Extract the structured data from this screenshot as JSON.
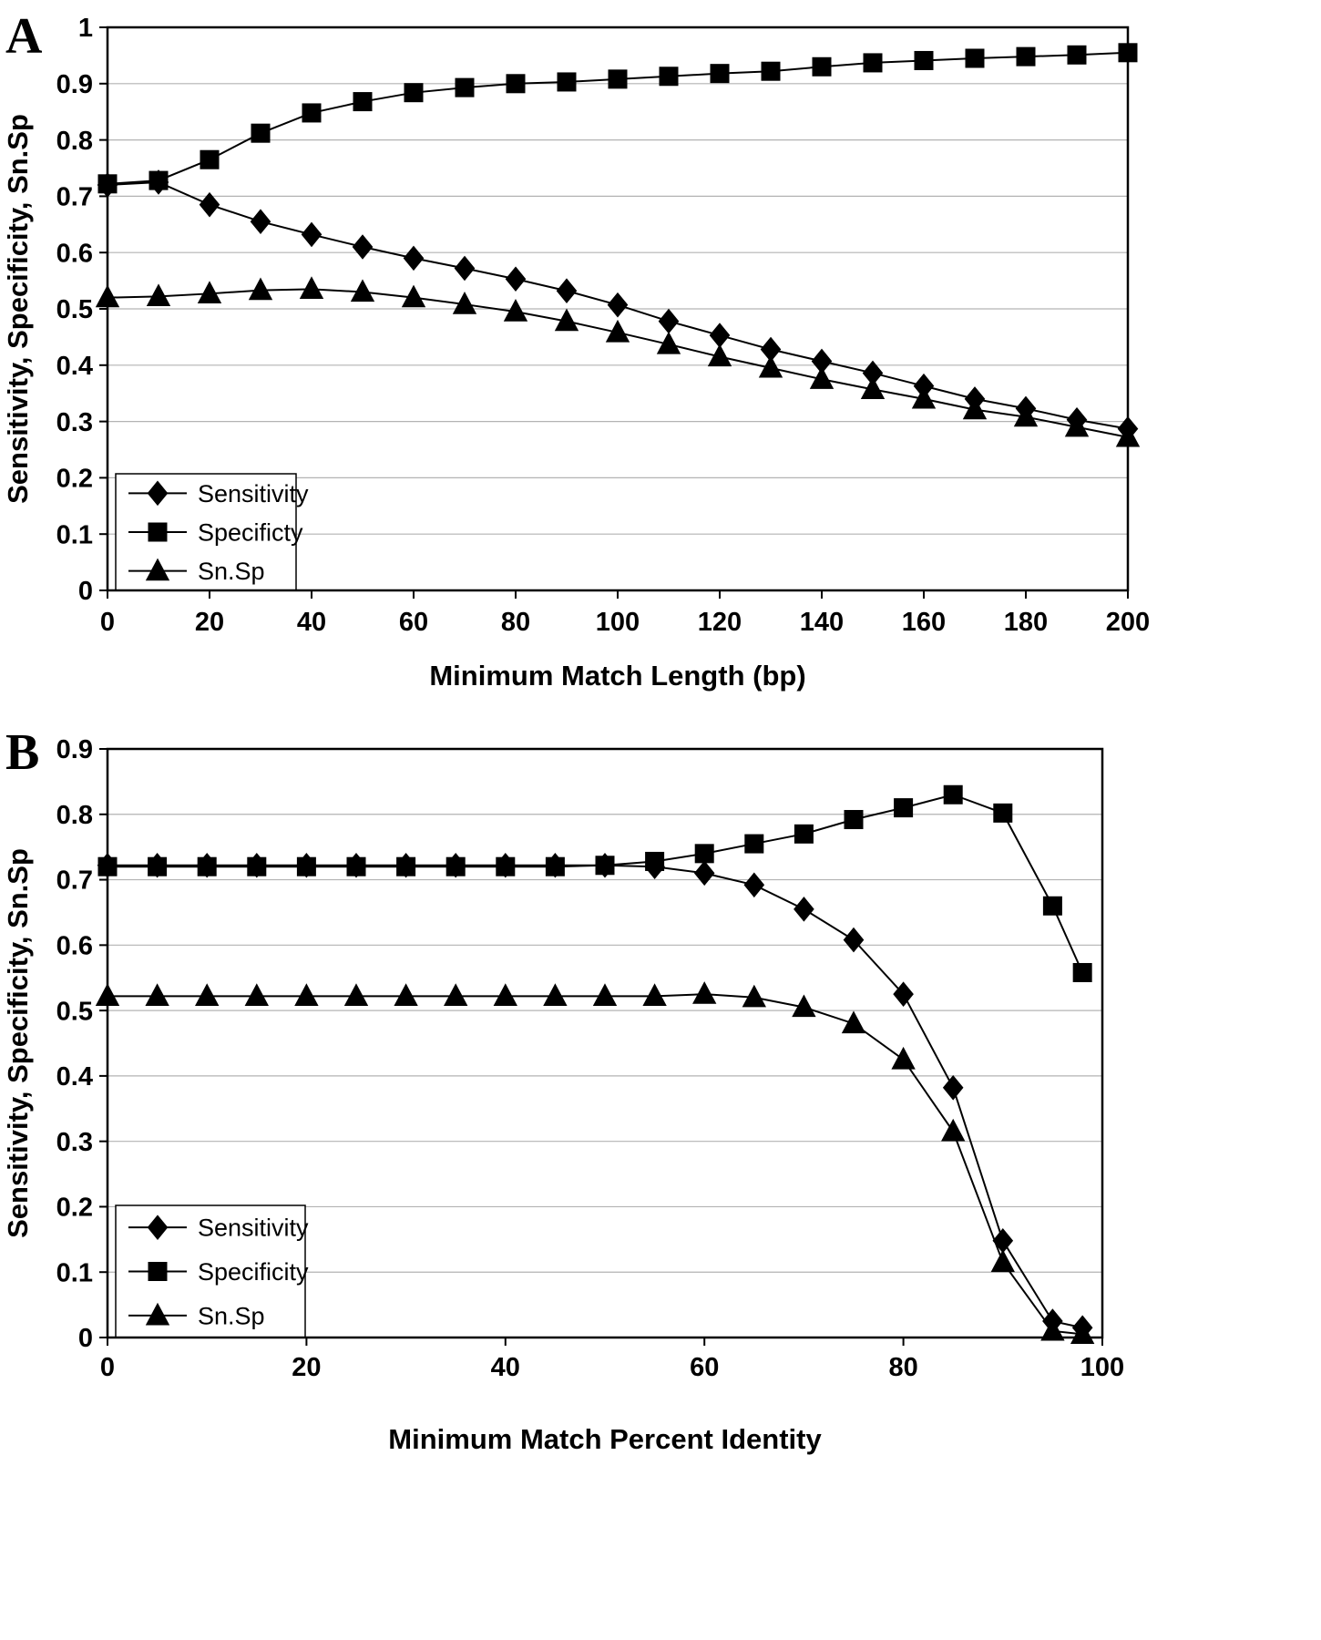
{
  "figure": {
    "background": "#ffffff",
    "line_color": "#000000",
    "grid_color": "#b3b3b3"
  },
  "chart_data": [
    {
      "type": "line",
      "panel_label": "A",
      "title": "",
      "xlabel": "Minimum Match Length (bp)",
      "ylabel": "Sensitivity, Specificity, Sn.Sp",
      "xlim": [
        0,
        200
      ],
      "ylim": [
        0,
        1
      ],
      "xticks": [
        0,
        20,
        40,
        60,
        80,
        100,
        120,
        140,
        160,
        180,
        200
      ],
      "yticks": [
        0,
        0.1,
        0.2,
        0.3,
        0.4,
        0.5,
        0.6,
        0.7,
        0.8,
        0.9,
        1
      ],
      "grid": "horizontal",
      "legend_position": "lower-left",
      "x": [
        0,
        10,
        20,
        30,
        40,
        50,
        60,
        70,
        80,
        90,
        100,
        110,
        120,
        130,
        140,
        150,
        160,
        170,
        180,
        190,
        200
      ],
      "series": [
        {
          "name": "Sensitivity",
          "marker": "diamond",
          "values": [
            0.72,
            0.725,
            0.685,
            0.655,
            0.632,
            0.61,
            0.59,
            0.572,
            0.553,
            0.532,
            0.507,
            0.478,
            0.453,
            0.428,
            0.407,
            0.386,
            0.363,
            0.34,
            0.323,
            0.303,
            0.287
          ]
        },
        {
          "name": "Specificty",
          "marker": "square",
          "values": [
            0.722,
            0.728,
            0.765,
            0.812,
            0.848,
            0.868,
            0.884,
            0.893,
            0.9,
            0.903,
            0.908,
            0.913,
            0.918,
            0.922,
            0.93,
            0.937,
            0.941,
            0.945,
            0.948,
            0.951,
            0.955
          ]
        },
        {
          "name": "Sn.Sp",
          "marker": "triangle",
          "values": [
            0.52,
            0.522,
            0.527,
            0.533,
            0.535,
            0.53,
            0.52,
            0.508,
            0.495,
            0.478,
            0.458,
            0.437,
            0.415,
            0.395,
            0.375,
            0.357,
            0.34,
            0.321,
            0.308,
            0.29,
            0.272
          ]
        }
      ]
    },
    {
      "type": "line",
      "panel_label": "B",
      "title": "",
      "xlabel": "Minimum Match Percent Identity",
      "ylabel": "Sensitivity, Specificity, Sn.Sp",
      "xlim": [
        0,
        100
      ],
      "ylim": [
        0,
        0.9
      ],
      "xticks": [
        0,
        20,
        40,
        60,
        80,
        100
      ],
      "yticks": [
        0,
        0.1,
        0.2,
        0.3,
        0.4,
        0.5,
        0.6,
        0.7,
        0.8,
        0.9
      ],
      "grid": "horizontal",
      "legend_position": "lower-left",
      "x": [
        0,
        5,
        10,
        15,
        20,
        25,
        30,
        35,
        40,
        45,
        50,
        55,
        60,
        65,
        70,
        75,
        80,
        85,
        90,
        95,
        98
      ],
      "series": [
        {
          "name": "Sensitivity",
          "marker": "diamond",
          "values": [
            0.722,
            0.722,
            0.722,
            0.722,
            0.722,
            0.722,
            0.722,
            0.722,
            0.722,
            0.722,
            0.722,
            0.72,
            0.71,
            0.692,
            0.655,
            0.608,
            0.525,
            0.382,
            0.148,
            0.025,
            0.015
          ]
        },
        {
          "name": "Specificity",
          "marker": "square",
          "values": [
            0.72,
            0.72,
            0.72,
            0.72,
            0.72,
            0.72,
            0.72,
            0.72,
            0.72,
            0.72,
            0.722,
            0.728,
            0.74,
            0.755,
            0.77,
            0.792,
            0.81,
            0.83,
            0.802,
            0.66,
            0.558
          ]
        },
        {
          "name": "Sn.Sp",
          "marker": "triangle",
          "values": [
            0.522,
            0.522,
            0.522,
            0.522,
            0.522,
            0.522,
            0.522,
            0.522,
            0.522,
            0.522,
            0.522,
            0.522,
            0.525,
            0.52,
            0.505,
            0.48,
            0.425,
            0.315,
            0.115,
            0.01,
            0.005
          ]
        }
      ]
    }
  ]
}
